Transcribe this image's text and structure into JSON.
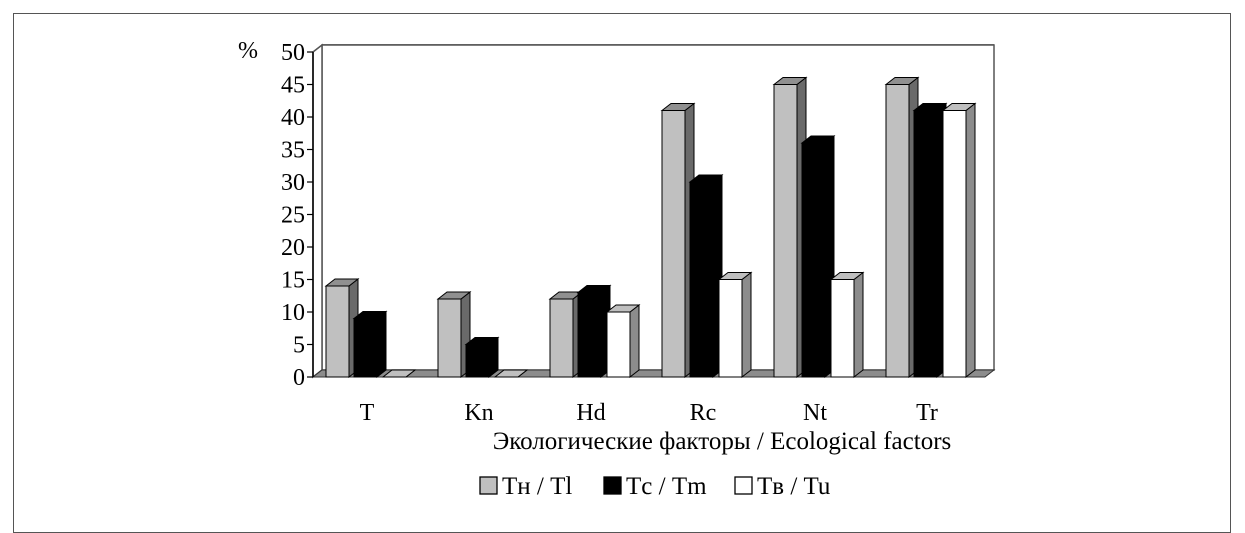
{
  "chart_data": {
    "type": "bar",
    "ylabel": "%",
    "xlabel": "Экологические факторы / Ecological factors",
    "ylim": [
      0,
      50
    ],
    "yticks": [
      0,
      5,
      10,
      15,
      20,
      25,
      30,
      35,
      40,
      45,
      50
    ],
    "categories": [
      "T",
      "Kn",
      "Hd",
      "Rc",
      "Nt",
      "Tr"
    ],
    "series": [
      {
        "name": "Tн / Tl",
        "color": "#c0c0c0",
        "values": [
          14,
          12,
          12,
          41,
          45,
          45
        ]
      },
      {
        "name": "Tс / Tm",
        "color": "#000000",
        "values": [
          9,
          5,
          13,
          30,
          36,
          41
        ]
      },
      {
        "name": "Tв / Tu",
        "color": "#ffffff",
        "values": [
          0,
          0,
          10,
          15,
          15,
          41
        ]
      }
    ],
    "grid": true,
    "style": "3d",
    "legend_position": "bottom"
  }
}
